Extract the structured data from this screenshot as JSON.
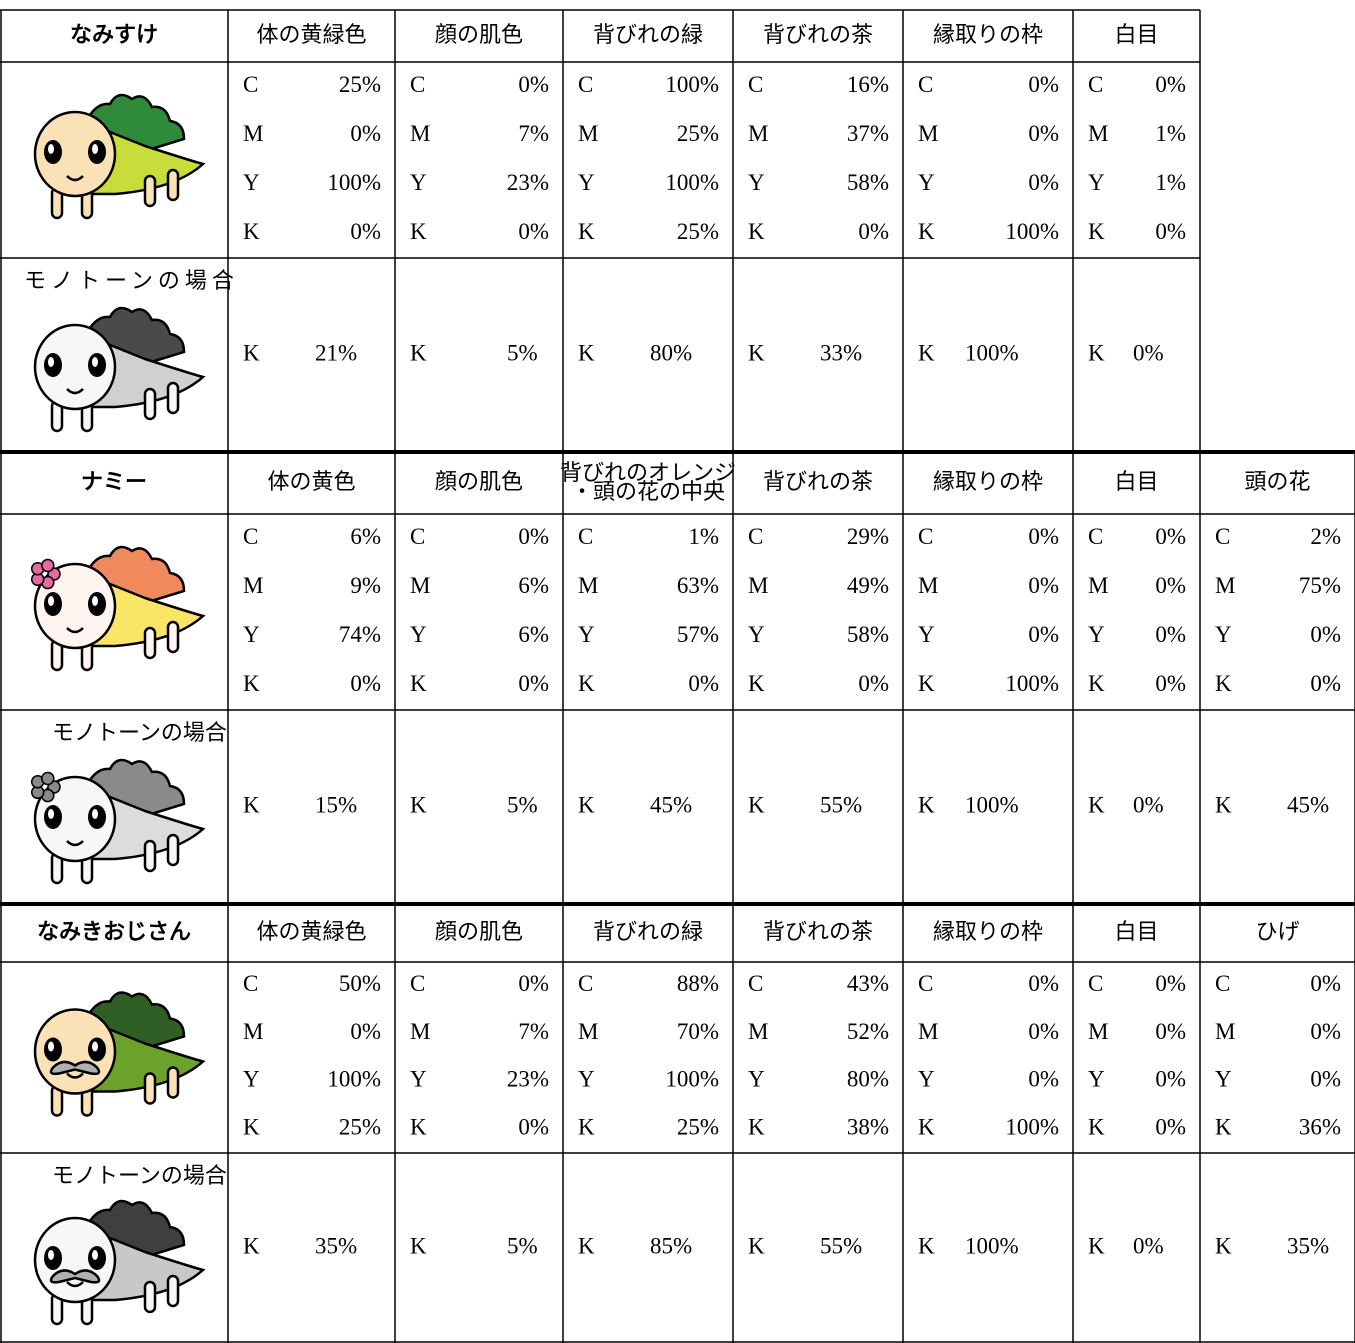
{
  "channels": [
    "C",
    "M",
    "Y",
    "K"
  ],
  "mono_channel": "K",
  "sections": [
    {
      "name": "なみすけ",
      "mono_label": "モノトーンの場合",
      "columns": [
        {
          "header": "体の黄緑色",
          "cmyk": [
            "25%",
            "0%",
            "100%",
            "0%"
          ],
          "mono": "21%"
        },
        {
          "header": "顔の肌色",
          "cmyk": [
            "0%",
            "7%",
            "23%",
            "0%"
          ],
          "mono": "5%"
        },
        {
          "header": "背びれの緑",
          "cmyk": [
            "100%",
            "25%",
            "100%",
            "25%"
          ],
          "mono": "80%"
        },
        {
          "header": "背びれの茶",
          "cmyk": [
            "16%",
            "37%",
            "58%",
            "0%"
          ],
          "mono": "33%"
        },
        {
          "header": "縁取りの枠",
          "cmyk": [
            "0%",
            "0%",
            "0%",
            "100%"
          ],
          "mono": "100%"
        },
        {
          "header": "白目",
          "cmyk": [
            "0%",
            "1%",
            "1%",
            "0%"
          ],
          "mono": "0%"
        }
      ]
    },
    {
      "name": "ナミー",
      "mono_label": "モノトーンの場合",
      "columns": [
        {
          "header": "体の黄色",
          "cmyk": [
            "6%",
            "9%",
            "74%",
            "0%"
          ],
          "mono": "15%"
        },
        {
          "header": "顔の肌色",
          "cmyk": [
            "0%",
            "6%",
            "6%",
            "0%"
          ],
          "mono": "5%"
        },
        {
          "header": [
            "背びれのオレンジ",
            "・頭の花の中央"
          ],
          "cmyk": [
            "1%",
            "63%",
            "57%",
            "0%"
          ],
          "mono": "45%"
        },
        {
          "header": "背びれの茶",
          "cmyk": [
            "29%",
            "49%",
            "58%",
            "0%"
          ],
          "mono": "55%"
        },
        {
          "header": "縁取りの枠",
          "cmyk": [
            "0%",
            "0%",
            "0%",
            "100%"
          ],
          "mono": "100%"
        },
        {
          "header": "白目",
          "cmyk": [
            "0%",
            "0%",
            "0%",
            "0%"
          ],
          "mono": "0%"
        },
        {
          "header": "頭の花",
          "cmyk": [
            "2%",
            "75%",
            "0%",
            "0%"
          ],
          "mono": "45%"
        }
      ]
    },
    {
      "name": "なみきおじさん",
      "mono_label": "モノトーンの場合",
      "columns": [
        {
          "header": "体の黄緑色",
          "cmyk": [
            "50%",
            "0%",
            "100%",
            "25%"
          ],
          "mono": "35%"
        },
        {
          "header": "顔の肌色",
          "cmyk": [
            "0%",
            "7%",
            "23%",
            "0%"
          ],
          "mono": "5%"
        },
        {
          "header": "背びれの緑",
          "cmyk": [
            "88%",
            "70%",
            "100%",
            "25%"
          ],
          "mono": "85%"
        },
        {
          "header": "背びれの茶",
          "cmyk": [
            "43%",
            "52%",
            "80%",
            "38%"
          ],
          "mono": "55%"
        },
        {
          "header": "縁取りの枠",
          "cmyk": [
            "0%",
            "0%",
            "0%",
            "100%"
          ],
          "mono": "100%"
        },
        {
          "header": "白目",
          "cmyk": [
            "0%",
            "0%",
            "0%",
            "0%"
          ],
          "mono": "0%"
        },
        {
          "header": "ひげ",
          "cmyk": [
            "0%",
            "0%",
            "0%",
            "36%"
          ],
          "mono": "35%"
        }
      ]
    }
  ]
}
